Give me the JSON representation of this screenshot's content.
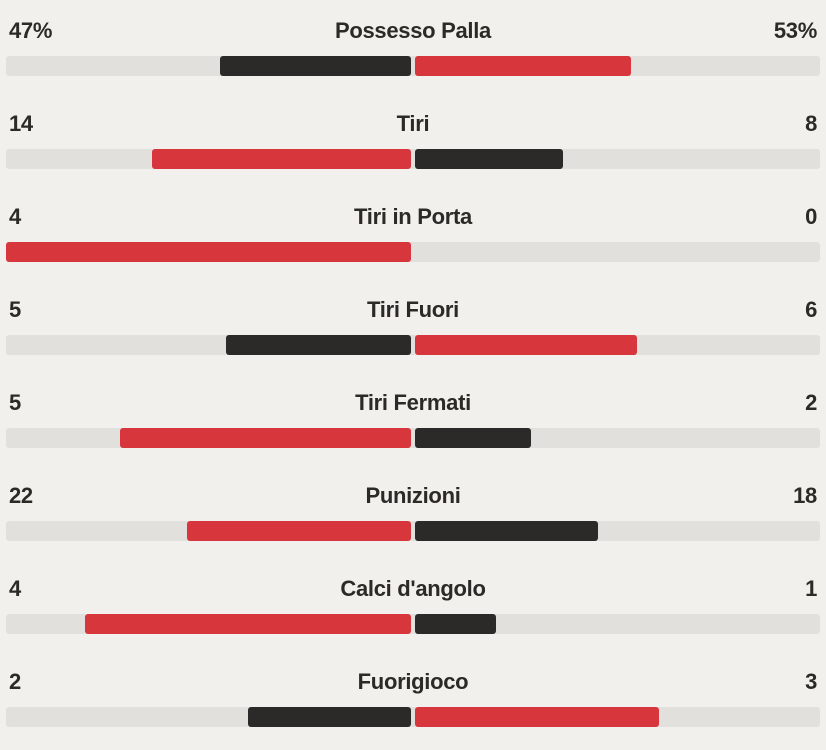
{
  "colors": {
    "red": "#d7363c",
    "dark": "#2b2a28",
    "track": "#e2e0dd",
    "background": "#f2f0ed",
    "text": "#2c2a27"
  },
  "chart_data": {
    "type": "bar",
    "orientation": "horizontal-diverging",
    "title": "",
    "description": "Football match statistics, home team (left) vs away team (right). The higher value of each pair is drawn in red, the lower in dark gray; bar length is proportional to value share of the pair.",
    "legend_position": "none",
    "rows": [
      {
        "label": "Possesso Palla",
        "left_display": "47%",
        "right_display": "53%",
        "left_value": 47,
        "right_value": 53
      },
      {
        "label": "Tiri",
        "left_display": "14",
        "right_display": "8",
        "left_value": 14,
        "right_value": 8
      },
      {
        "label": "Tiri in Porta",
        "left_display": "4",
        "right_display": "0",
        "left_value": 4,
        "right_value": 0
      },
      {
        "label": "Tiri Fuori",
        "left_display": "5",
        "right_display": "6",
        "left_value": 5,
        "right_value": 6
      },
      {
        "label": "Tiri Fermati",
        "left_display": "5",
        "right_display": "2",
        "left_value": 5,
        "right_value": 2
      },
      {
        "label": "Punizioni",
        "left_display": "22",
        "right_display": "18",
        "left_value": 22,
        "right_value": 18
      },
      {
        "label": "Calci d'angolo",
        "left_display": "4",
        "right_display": "1",
        "left_value": 4,
        "right_value": 1
      },
      {
        "label": "Fuorigioco",
        "left_display": "2",
        "right_display": "3",
        "left_value": 2,
        "right_value": 3
      }
    ]
  }
}
